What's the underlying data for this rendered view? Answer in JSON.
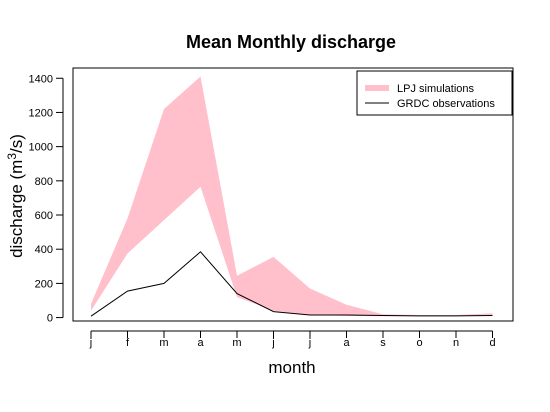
{
  "chart_data": {
    "type": "area",
    "title": "Mean Monthly discharge",
    "xlabel": "month",
    "ylabel_prefix": "discharge (m",
    "ylabel_superscript": "3",
    "ylabel_suffix": "/s)",
    "categories": [
      "j",
      "f",
      "m",
      "a",
      "m",
      "j",
      "j",
      "a",
      "s",
      "o",
      "n",
      "d"
    ],
    "ylim": [
      -20,
      1460
    ],
    "yticks": [
      0,
      200,
      400,
      600,
      800,
      1000,
      1200,
      1400
    ],
    "grid": false,
    "legend": {
      "position": "top-right",
      "entries": [
        {
          "label": "LPJ simulations",
          "color": "#ffc0cb",
          "kind": "band"
        },
        {
          "label": "GRDC observations",
          "color": "#000000",
          "kind": "line"
        }
      ]
    },
    "series": [
      {
        "name": "LPJ simulations",
        "kind": "band",
        "color": "#ffc0cb",
        "lower": [
          40,
          375,
          570,
          765,
          120,
          40,
          15,
          10,
          8,
          8,
          8,
          15
        ],
        "upper": [
          80,
          580,
          1220,
          1410,
          245,
          355,
          170,
          75,
          20,
          15,
          15,
          25
        ]
      },
      {
        "name": "GRDC observations",
        "kind": "line",
        "color": "#000000",
        "values": [
          8,
          155,
          200,
          385,
          140,
          35,
          15,
          15,
          12,
          10,
          10,
          12
        ]
      }
    ]
  }
}
